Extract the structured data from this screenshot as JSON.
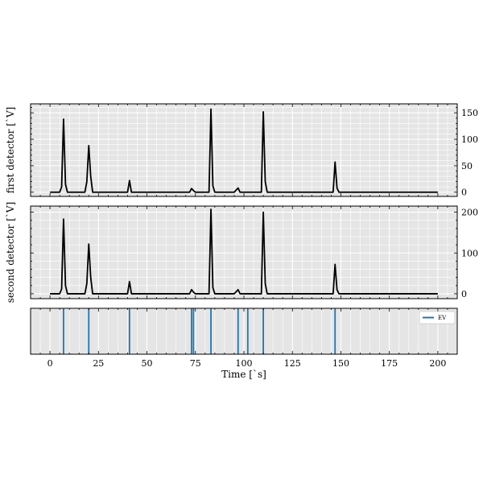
{
  "chart_data": [
    {
      "type": "line",
      "ylabel": "first detector [`V]",
      "xlim": [
        -10,
        210
      ],
      "ylim": [
        -8,
        167
      ],
      "yticks": [
        0,
        50,
        100,
        150
      ],
      "grid": true,
      "y_axis_side": "right",
      "line_color": "#000000",
      "x": [
        0,
        5,
        6,
        7,
        8,
        9,
        18,
        19,
        20,
        21,
        22,
        40,
        41,
        42,
        72,
        73,
        74,
        75,
        82,
        83,
        84,
        85,
        95,
        97,
        98,
        109,
        110,
        111,
        112,
        146,
        147,
        148,
        149,
        200
      ],
      "values": [
        0,
        0,
        10,
        138,
        15,
        0,
        0,
        20,
        88,
        30,
        0,
        0,
        22,
        0,
        0,
        7,
        3,
        0,
        0,
        157,
        12,
        0,
        0,
        8,
        0,
        0,
        152,
        20,
        0,
        0,
        57,
        8,
        0,
        0
      ]
    },
    {
      "type": "line",
      "ylabel": "second detector [`V]",
      "xlim": [
        -10,
        210
      ],
      "ylim": [
        -12,
        215
      ],
      "yticks": [
        0,
        100,
        200
      ],
      "grid": true,
      "y_axis_side": "right",
      "line_color": "#000000",
      "x": [
        0,
        5,
        6,
        7,
        8,
        9,
        18,
        19,
        20,
        21,
        22,
        40,
        41,
        42,
        72,
        73,
        74,
        75,
        82,
        83,
        84,
        85,
        95,
        97,
        98,
        109,
        110,
        111,
        112,
        146,
        147,
        148,
        149,
        200
      ],
      "values": [
        0,
        0,
        12,
        183,
        20,
        0,
        0,
        25,
        122,
        40,
        0,
        0,
        30,
        0,
        0,
        10,
        4,
        0,
        0,
        207,
        15,
        0,
        0,
        10,
        0,
        0,
        200,
        25,
        0,
        0,
        72,
        10,
        0,
        0
      ]
    },
    {
      "type": "event",
      "xlabel": "Time [`s]",
      "xlim": [
        -10,
        210
      ],
      "xticks": [
        0,
        25,
        50,
        75,
        100,
        125,
        150,
        175,
        200
      ],
      "events": [
        7,
        20,
        41,
        73,
        74,
        83,
        97,
        102,
        110,
        147
      ],
      "legend": [
        "EV"
      ],
      "legend_position": "top-right",
      "line_color": "#1f77b4",
      "grid": true
    }
  ]
}
